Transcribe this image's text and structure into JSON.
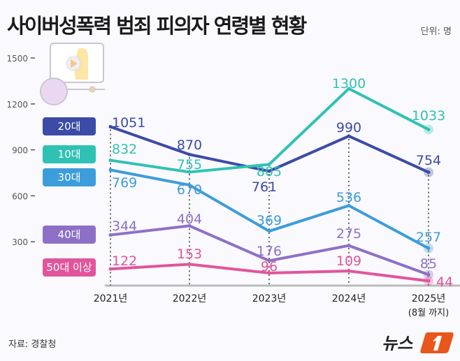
{
  "title": "사이버성폭력 범죄 피의자 연령별 현황",
  "unit": "단위: 명",
  "source": "자료: 경찰청",
  "logo_text": "뉴스1",
  "chart_data": {
    "type": "line",
    "categories": [
      "2021년",
      "2022년",
      "2023년",
      "2024년",
      "2025년"
    ],
    "category_notes": [
      "",
      "",
      "",
      "",
      "(8월 까지)"
    ],
    "ylim": [
      0,
      1500
    ],
    "yticks": [
      300,
      600,
      900,
      1200,
      1500
    ],
    "grid": false,
    "legend": "left",
    "series": [
      {
        "name": "20대",
        "color": "#3b4ba6",
        "values": [
          1051,
          870,
          761,
          990,
          754
        ]
      },
      {
        "name": "10대",
        "color": "#2fc2b4",
        "values": [
          832,
          755,
          805,
          1300,
          1033
        ]
      },
      {
        "name": "30대",
        "color": "#3c9ddb",
        "values": [
          769,
          670,
          369,
          536,
          257
        ]
      },
      {
        "name": "40대",
        "color": "#8d70c6",
        "values": [
          344,
          404,
          176,
          275,
          85
        ]
      },
      {
        "name": "50대 이상",
        "color": "#e0559b",
        "values": [
          122,
          153,
          96,
          109,
          44
        ]
      }
    ]
  }
}
